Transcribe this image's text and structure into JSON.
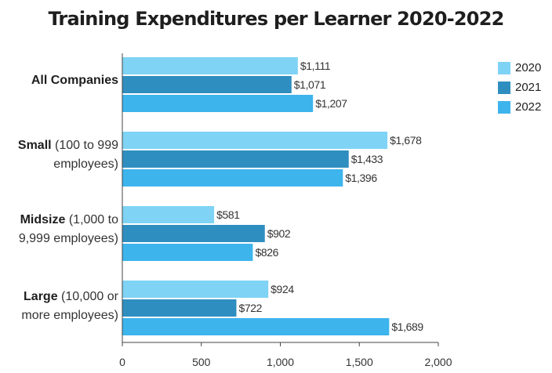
{
  "chart_data": {
    "type": "bar",
    "orientation": "horizontal",
    "title": "Training Expenditures per Learner 2020-2022",
    "categories": [
      {
        "bold": "All Companies",
        "rest": ""
      },
      {
        "bold": "Small",
        "rest": " (100 to 999 employees)"
      },
      {
        "bold": "Midsize",
        "rest": " (1,000 to 9,999 employees)"
      },
      {
        "bold": "Large",
        "rest": " (10,000 or more employees)"
      }
    ],
    "category_lines": [
      [
        {
          "bold": "All Companies",
          "rest": ""
        }
      ],
      [
        {
          "bold": "Small",
          "rest": " (100 to 999"
        },
        {
          "bold": "",
          "rest": "employees)"
        }
      ],
      [
        {
          "bold": "Midsize",
          "rest": " (1,000 to"
        },
        {
          "bold": "",
          "rest": "9,999 employees)"
        }
      ],
      [
        {
          "bold": "Large",
          "rest": " (10,000 or"
        },
        {
          "bold": "",
          "rest": "more employees)"
        }
      ]
    ],
    "series": [
      {
        "name": "2020",
        "color": "#7fd3f5",
        "values": [
          1111,
          1678,
          581,
          924
        ],
        "labels": [
          "$1,111",
          "$1,678",
          "$581",
          "$924"
        ]
      },
      {
        "name": "2021",
        "color": "#2f8ec0",
        "values": [
          1071,
          1433,
          902,
          722
        ],
        "labels": [
          "$1,071",
          "$1,433",
          "$902",
          "$722"
        ]
      },
      {
        "name": "2022",
        "color": "#3db4ec",
        "values": [
          1207,
          1396,
          826,
          1689
        ],
        "labels": [
          "$1,207",
          "$1,396",
          "$826",
          "$1,689"
        ]
      }
    ],
    "x_ticks": [
      0,
      500,
      1000,
      1500,
      2000
    ],
    "x_tick_labels": [
      "0",
      "500",
      "1,000",
      "1,500",
      "2,000"
    ],
    "xlim": [
      0,
      2000
    ],
    "grid": false,
    "legend_position": "top-right"
  }
}
